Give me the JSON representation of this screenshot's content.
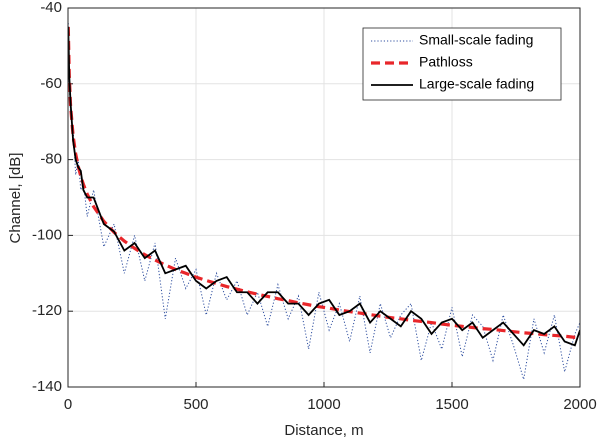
{
  "chart_data": {
    "type": "line",
    "xlabel": "Distance, m",
    "ylabel": "Channel, [dB]",
    "xlim": [
      0,
      2000
    ],
    "ylim": [
      -140,
      -40
    ],
    "xticks": [
      0,
      500,
      1000,
      1500,
      2000
    ],
    "yticks": [
      -40,
      -60,
      -80,
      -100,
      -120,
      -140
    ],
    "grid": true,
    "legend": "northeast",
    "x": [
      1,
      5,
      10,
      20,
      30,
      40,
      50,
      60,
      75,
      100,
      140,
      180,
      220,
      260,
      300,
      340,
      380,
      420,
      460,
      500,
      540,
      580,
      620,
      660,
      700,
      740,
      780,
      820,
      860,
      900,
      940,
      980,
      1020,
      1060,
      1100,
      1140,
      1180,
      1220,
      1260,
      1300,
      1340,
      1380,
      1420,
      1460,
      1500,
      1540,
      1580,
      1620,
      1660,
      1700,
      1740,
      1780,
      1820,
      1860,
      1900,
      1940,
      1980,
      2000
    ],
    "series": [
      {
        "name": "Small-scale fading",
        "color": "#2f4fa0",
        "style": "dotted",
        "values": [
          -44,
          -60,
          -68,
          -72,
          -84,
          -80,
          -88,
          -86,
          -95,
          -88,
          -103,
          -97,
          -110,
          -100,
          -112,
          -102,
          -122,
          -106,
          -114,
          -109,
          -121,
          -110,
          -117,
          -112,
          -121,
          -115,
          -124,
          -113,
          -122,
          -116,
          -130,
          -115,
          -125,
          -118,
          -128,
          -116,
          -131,
          -118,
          -127,
          -121,
          -118,
          -133,
          -123,
          -130,
          -119,
          -132,
          -121,
          -124,
          -133,
          -121,
          -129,
          -138,
          -122,
          -131,
          -121,
          -136,
          -126,
          -123
        ]
      },
      {
        "name": "Pathloss",
        "color": "#e8262a",
        "style": "dashed",
        "values": [
          -45,
          -57.8,
          -65.8,
          -73.8,
          -78.5,
          -81.8,
          -84.4,
          -86.5,
          -89.1,
          -92.4,
          -96.3,
          -99.2,
          -101.5,
          -103.4,
          -105.1,
          -106.5,
          -107.8,
          -109.0,
          -110.0,
          -111.0,
          -111.9,
          -112.7,
          -113.5,
          -114.2,
          -114.9,
          -115.5,
          -116.1,
          -116.7,
          -117.2,
          -117.8,
          -118.3,
          -118.8,
          -119.2,
          -119.7,
          -120.1,
          -120.5,
          -120.9,
          -121.3,
          -121.7,
          -122.0,
          -122.4,
          -122.7,
          -123.0,
          -123.4,
          -123.7,
          -124.0,
          -124.3,
          -124.6,
          -124.8,
          -125.1,
          -125.4,
          -125.7,
          -125.9,
          -126.2,
          -126.4,
          -126.6,
          -126.9,
          -127.0
        ]
      },
      {
        "name": "Large-scale fading",
        "color": "#000000",
        "style": "solid",
        "values": [
          -45,
          -58,
          -65,
          -75,
          -80,
          -82,
          -83,
          -88,
          -90,
          -90,
          -97,
          -99,
          -104,
          -102,
          -106,
          -104,
          -110,
          -109,
          -108,
          -112,
          -114,
          -112,
          -111,
          -115,
          -115,
          -118,
          -115,
          -115,
          -118,
          -118,
          -121,
          -118,
          -117,
          -121,
          -120,
          -118,
          -123,
          -120,
          -122,
          -124,
          -120,
          -122,
          -126,
          -123,
          -122,
          -125,
          -123,
          -127,
          -125,
          -123,
          -126,
          -129,
          -125,
          -126,
          -124,
          -128,
          -129,
          -125
        ]
      }
    ]
  }
}
